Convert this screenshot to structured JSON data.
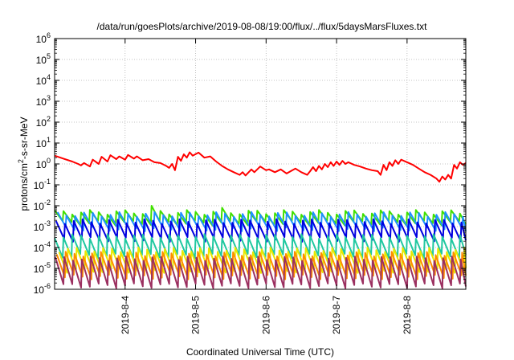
{
  "chart_data": {
    "type": "line",
    "title": "/data/run/goesPlots/archive/2019-08-08/19:00/flux/../flux/5daysMarsFluxes.txt",
    "xlabel": "Coordinated Universal Time (UTC)",
    "ylabel": "protons/cm2-s-sr-MeV",
    "ylabel_parts": {
      "base": "protons/cm",
      "sup": "2",
      "rest": "-s-sr-MeV"
    },
    "y_scale": "log",
    "ylim": [
      1e-06,
      1000000.0
    ],
    "y_ticks": [
      {
        "value": 1e-06,
        "base": "10",
        "exp": "-6"
      },
      {
        "value": 1e-05,
        "base": "10",
        "exp": "-5"
      },
      {
        "value": 0.0001,
        "base": "10",
        "exp": "-4"
      },
      {
        "value": 0.001,
        "base": "10",
        "exp": "-3"
      },
      {
        "value": 0.01,
        "base": "10",
        "exp": "-2"
      },
      {
        "value": 0.1,
        "base": "10",
        "exp": "-1"
      },
      {
        "value": 1,
        "base": "10",
        "exp": "0"
      },
      {
        "value": 10,
        "base": "10",
        "exp": "1"
      },
      {
        "value": 100,
        "base": "10",
        "exp": "2"
      },
      {
        "value": 1000,
        "base": "10",
        "exp": "3"
      },
      {
        "value": 10000,
        "base": "10",
        "exp": "4"
      },
      {
        "value": 100000,
        "base": "10",
        "exp": "5"
      },
      {
        "value": 1000000,
        "base": "10",
        "exp": "6"
      }
    ],
    "xlim": [
      "2019-08-03 00:00",
      "2019-08-08 20:00"
    ],
    "x_ticks": [
      {
        "value": "2019-08-04 00:00",
        "label": "2019-8-4"
      },
      {
        "value": "2019-08-05 00:00",
        "label": "2019-8-5"
      },
      {
        "value": "2019-08-06 00:00",
        "label": "2019-8-6"
      },
      {
        "value": "2019-08-07 00:00",
        "label": "2019-8-7"
      },
      {
        "value": "2019-08-08 00:00",
        "label": "2019-8-8"
      }
    ],
    "grid": true,
    "series": [
      {
        "color": "#ff0000",
        "points": [
          [
            "2019-08-03 00:00",
            2.5
          ],
          [
            "2019-08-03 03:00",
            1.8
          ],
          [
            "2019-08-03 06:00",
            1.3
          ],
          [
            "2019-08-03 08:00",
            1.0
          ],
          [
            "2019-08-03 09:00",
            0.85
          ],
          [
            "2019-08-03 10:00",
            1.1
          ],
          [
            "2019-08-03 12:00",
            0.75
          ],
          [
            "2019-08-03 13:00",
            1.6
          ],
          [
            "2019-08-03 15:00",
            1.0
          ],
          [
            "2019-08-03 16:00",
            2.2
          ],
          [
            "2019-08-03 18:00",
            1.3
          ],
          [
            "2019-08-03 19:00",
            2.6
          ],
          [
            "2019-08-03 21:00",
            1.7
          ],
          [
            "2019-08-03 22:00",
            2.3
          ],
          [
            "2019-08-04 00:00",
            1.6
          ],
          [
            "2019-08-04 01:00",
            2.7
          ],
          [
            "2019-08-04 03:00",
            1.8
          ],
          [
            "2019-08-04 04:00",
            2.3
          ],
          [
            "2019-08-04 06:00",
            1.5
          ],
          [
            "2019-08-04 08:00",
            1.7
          ],
          [
            "2019-08-04 10:00",
            1.2
          ],
          [
            "2019-08-04 12:00",
            1.1
          ],
          [
            "2019-08-04 14:00",
            0.8
          ],
          [
            "2019-08-04 15:00",
            0.65
          ],
          [
            "2019-08-04 16:00",
            1.0
          ],
          [
            "2019-08-04 17:00",
            0.5
          ],
          [
            "2019-08-04 18:00",
            2.2
          ],
          [
            "2019-08-04 19:00",
            1.4
          ],
          [
            "2019-08-04 20:00",
            2.9
          ],
          [
            "2019-08-04 21:00",
            2.0
          ],
          [
            "2019-08-04 22:00",
            3.6
          ],
          [
            "2019-08-04 23:00",
            2.5
          ],
          [
            "2019-08-05 01:00",
            3.5
          ],
          [
            "2019-08-05 03:00",
            2.0
          ],
          [
            "2019-08-05 05:00",
            2.3
          ],
          [
            "2019-08-05 07:00",
            1.3
          ],
          [
            "2019-08-05 09:00",
            0.8
          ],
          [
            "2019-08-05 11:00",
            0.55
          ],
          [
            "2019-08-05 13:00",
            0.4
          ],
          [
            "2019-08-05 15:00",
            0.3
          ],
          [
            "2019-08-05 16:00",
            0.4
          ],
          [
            "2019-08-05 17:00",
            0.28
          ],
          [
            "2019-08-05 19:00",
            0.55
          ],
          [
            "2019-08-05 20:00",
            0.4
          ],
          [
            "2019-08-05 22:00",
            0.75
          ],
          [
            "2019-08-06 00:00",
            0.5
          ],
          [
            "2019-08-06 01:00",
            0.55
          ],
          [
            "2019-08-06 03:00",
            0.4
          ],
          [
            "2019-08-06 05:00",
            0.55
          ],
          [
            "2019-08-06 07:00",
            0.35
          ],
          [
            "2019-08-06 09:00",
            0.5
          ],
          [
            "2019-08-06 10:00",
            0.6
          ],
          [
            "2019-08-06 12:00",
            0.4
          ],
          [
            "2019-08-06 14:00",
            0.3
          ],
          [
            "2019-08-06 15:00",
            0.45
          ],
          [
            "2019-08-06 16:00",
            0.7
          ],
          [
            "2019-08-06 17:00",
            0.45
          ],
          [
            "2019-08-06 18:00",
            0.8
          ],
          [
            "2019-08-06 19:00",
            0.55
          ],
          [
            "2019-08-06 20:00",
            1.0
          ],
          [
            "2019-08-06 21:00",
            0.7
          ],
          [
            "2019-08-06 22:00",
            1.2
          ],
          [
            "2019-08-06 23:00",
            0.8
          ],
          [
            "2019-08-07 00:00",
            1.3
          ],
          [
            "2019-08-07 01:00",
            0.9
          ],
          [
            "2019-08-07 02:00",
            1.4
          ],
          [
            "2019-08-07 03:00",
            1.0
          ],
          [
            "2019-08-07 04:00",
            1.2
          ],
          [
            "2019-08-07 06:00",
            0.9
          ],
          [
            "2019-08-07 08:00",
            0.75
          ],
          [
            "2019-08-07 10:00",
            0.6
          ],
          [
            "2019-08-07 12:00",
            0.5
          ],
          [
            "2019-08-07 14:00",
            0.45
          ],
          [
            "2019-08-07 15:00",
            0.3
          ],
          [
            "2019-08-07 16:00",
            0.9
          ],
          [
            "2019-08-07 17:00",
            0.5
          ],
          [
            "2019-08-07 18:00",
            1.2
          ],
          [
            "2019-08-07 19:00",
            0.8
          ],
          [
            "2019-08-07 20:00",
            1.5
          ],
          [
            "2019-08-07 21:00",
            1.0
          ],
          [
            "2019-08-07 22:00",
            1.6
          ],
          [
            "2019-08-08 00:00",
            1.2
          ],
          [
            "2019-08-08 02:00",
            0.9
          ],
          [
            "2019-08-08 04:00",
            0.6
          ],
          [
            "2019-08-08 06:00",
            0.4
          ],
          [
            "2019-08-08 08:00",
            0.3
          ],
          [
            "2019-08-08 10:00",
            0.2
          ],
          [
            "2019-08-08 11:00",
            0.14
          ],
          [
            "2019-08-08 12:00",
            0.25
          ],
          [
            "2019-08-08 13:00",
            0.18
          ],
          [
            "2019-08-08 14:00",
            0.3
          ],
          [
            "2019-08-08 15:00",
            0.2
          ],
          [
            "2019-08-08 16:00",
            0.9
          ],
          [
            "2019-08-08 17:00",
            0.6
          ],
          [
            "2019-08-08 18:00",
            1.2
          ],
          [
            "2019-08-08 19:00",
            0.9
          ],
          [
            "2019-08-08 20:00",
            1.1
          ]
        ]
      },
      {
        "color": "#40e000",
        "sawtooth": {
          "start": "2019-08-03 00:00",
          "end": "2019-08-08 20:00",
          "period_hours": 3,
          "high": 0.005,
          "low": 0.0015
        },
        "spikes": [
          [
            "2019-08-04 10:00",
            0.01
          ],
          [
            "2019-08-05 09:00",
            0.012
          ],
          [
            "2019-08-05 10:00",
            0.008
          ]
        ]
      },
      {
        "color": "#1e90ff",
        "sawtooth": {
          "start": "2019-08-03 01:00",
          "end": "2019-08-08 20:00",
          "period_hours": 3,
          "high": 0.004,
          "low": 0.0008
        }
      },
      {
        "color": "#0000e0",
        "sawtooth": {
          "start": "2019-08-03 00:30",
          "end": "2019-08-08 20:00",
          "period_hours": 3,
          "high": 0.0018,
          "low": 0.00025
        }
      },
      {
        "color": "#20c8a0",
        "sawtooth": {
          "start": "2019-08-03 00:00",
          "end": "2019-08-08 20:00",
          "period_hours": 3,
          "high": 0.00035,
          "low": 4e-05
        }
      },
      {
        "color": "#e8e800",
        "sawtooth": {
          "start": "2019-08-03 01:30",
          "end": "2019-08-08 20:00",
          "period_hours": 3,
          "high": 8e-05,
          "low": 8e-06
        }
      },
      {
        "color": "#ff8c00",
        "sawtooth": {
          "start": "2019-08-03 00:45",
          "end": "2019-08-08 20:00",
          "period_hours": 3,
          "high": 5e-05,
          "low": 4e-06
        }
      },
      {
        "color": "#9b3060",
        "sawtooth": {
          "start": "2019-08-03 00:15",
          "end": "2019-08-08 20:00",
          "period_hours": 3,
          "high": 3e-05,
          "low": 1.5e-06
        }
      }
    ]
  }
}
